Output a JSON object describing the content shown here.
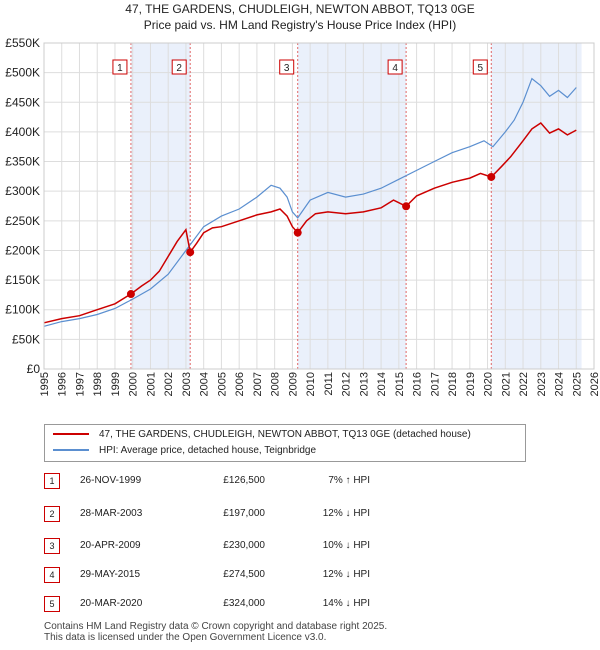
{
  "header": {
    "title_line1": "47, THE GARDENS, CHUDLEIGH, NEWTON ABBOT, TQ13 0GE",
    "title_line2": "Price paid vs. HM Land Registry's House Price Index (HPI)"
  },
  "colors": {
    "price_line": "#cc0000",
    "hpi_line": "#5b8fd0",
    "shade": "#eaf0fb",
    "grid": "#dddddd",
    "marker_box_border": "#cc0000"
  },
  "chart_data": {
    "type": "line",
    "title": "Price paid vs. HM Land Registry's House Price Index (HPI)",
    "xlabel": "",
    "ylabel": "",
    "xlim": [
      1995,
      2026
    ],
    "ylim": [
      0,
      550000
    ],
    "grid": true,
    "x_ticks": [
      "1995",
      "1996",
      "1997",
      "1998",
      "1999",
      "2000",
      "2001",
      "2002",
      "2003",
      "2004",
      "2005",
      "2006",
      "2007",
      "2008",
      "2009",
      "2010",
      "2011",
      "2012",
      "2013",
      "2014",
      "2015",
      "2016",
      "2017",
      "2018",
      "2019",
      "2020",
      "2021",
      "2022",
      "2023",
      "2024",
      "2025",
      "2026"
    ],
    "y_ticks": [
      {
        "value": 0,
        "label": "£0"
      },
      {
        "value": 50000,
        "label": "£50K"
      },
      {
        "value": 100000,
        "label": "£100K"
      },
      {
        "value": 150000,
        "label": "£150K"
      },
      {
        "value": 200000,
        "label": "£200K"
      },
      {
        "value": 250000,
        "label": "£250K"
      },
      {
        "value": 300000,
        "label": "£300K"
      },
      {
        "value": 350000,
        "label": "£350K"
      },
      {
        "value": 400000,
        "label": "£400K"
      },
      {
        "value": 450000,
        "label": "£450K"
      },
      {
        "value": 500000,
        "label": "£500K"
      },
      {
        "value": 550000,
        "label": "£550K"
      }
    ],
    "series": [
      {
        "name": "47, THE GARDENS, CHUDLEIGH, NEWTON ABBOT, TQ13 0GE (detached house)",
        "color": "#cc0000",
        "x": [
          1995.0,
          1996.0,
          1997.0,
          1998.0,
          1999.0,
          1999.9,
          2000.5,
          2001.0,
          2001.5,
          2002.0,
          2002.5,
          2003.0,
          2003.24,
          2003.6,
          2004.0,
          2004.5,
          2005.0,
          2006.0,
          2007.0,
          2007.8,
          2008.3,
          2008.7,
          2009.0,
          2009.3,
          2009.8,
          2010.3,
          2011.0,
          2012.0,
          2013.0,
          2014.0,
          2014.7,
          2015.41,
          2016.0,
          2017.0,
          2018.0,
          2019.0,
          2019.6,
          2020.21,
          2020.8,
          2021.3,
          2022.0,
          2022.5,
          2023.0,
          2023.5,
          2024.0,
          2024.5,
          2025.0
        ],
        "values": [
          78000,
          85000,
          90000,
          100000,
          110000,
          126500,
          140000,
          150000,
          165000,
          190000,
          215000,
          235000,
          197000,
          212000,
          230000,
          238000,
          240000,
          250000,
          260000,
          265000,
          270000,
          258000,
          240000,
          230000,
          250000,
          262000,
          265000,
          262000,
          265000,
          272000,
          285000,
          274500,
          292000,
          305000,
          315000,
          322000,
          330000,
          324000,
          342000,
          358000,
          385000,
          405000,
          415000,
          398000,
          405000,
          395000,
          403000
        ]
      },
      {
        "name": "HPI: Average price, detached house, Teignbridge",
        "color": "#5b8fd0",
        "x": [
          1995.0,
          1996.0,
          1997.0,
          1998.0,
          1999.0,
          2000.0,
          2001.0,
          2002.0,
          2003.0,
          2004.0,
          2005.0,
          2006.0,
          2007.0,
          2007.8,
          2008.3,
          2008.7,
          2009.0,
          2009.3,
          2010.0,
          2011.0,
          2012.0,
          2013.0,
          2014.0,
          2015.0,
          2016.0,
          2017.0,
          2018.0,
          2019.0,
          2019.8,
          2020.3,
          2021.0,
          2021.5,
          2022.0,
          2022.5,
          2023.0,
          2023.5,
          2024.0,
          2024.5,
          2025.0
        ],
        "values": [
          72000,
          80000,
          85000,
          92000,
          102000,
          118000,
          135000,
          160000,
          200000,
          240000,
          258000,
          270000,
          290000,
          310000,
          305000,
          290000,
          265000,
          255000,
          285000,
          298000,
          290000,
          295000,
          305000,
          320000,
          335000,
          350000,
          365000,
          375000,
          385000,
          375000,
          400000,
          420000,
          450000,
          490000,
          478000,
          460000,
          470000,
          458000,
          475000
        ]
      }
    ],
    "sales": [
      {
        "n": "1",
        "x": 1999.9,
        "value": 126500
      },
      {
        "n": "2",
        "x": 2003.24,
        "value": 197000
      },
      {
        "n": "3",
        "x": 2009.3,
        "value": 230000
      },
      {
        "n": "4",
        "x": 2015.41,
        "value": 274500
      },
      {
        "n": "5",
        "x": 2020.21,
        "value": 324000
      }
    ],
    "shaded_ranges": [
      [
        1999.9,
        2003.24
      ],
      [
        2009.3,
        2015.41
      ],
      [
        2020.21,
        2025.3
      ]
    ]
  },
  "legend": {
    "price_label": "47, THE GARDENS, CHUDLEIGH, NEWTON ABBOT, TQ13 0GE (detached house)",
    "hpi_label": "HPI: Average price, detached house, Teignbridge"
  },
  "sales_table": [
    {
      "n": "1",
      "date": "26-NOV-1999",
      "price": "£126,500",
      "hpi": "7% ↑ HPI"
    },
    {
      "n": "2",
      "date": "28-MAR-2003",
      "price": "£197,000",
      "hpi": "12% ↓ HPI"
    },
    {
      "n": "3",
      "date": "20-APR-2009",
      "price": "£230,000",
      "hpi": "10% ↓ HPI"
    },
    {
      "n": "4",
      "date": "29-MAY-2015",
      "price": "£274,500",
      "hpi": "12% ↓ HPI"
    },
    {
      "n": "5",
      "date": "20-MAR-2020",
      "price": "£324,000",
      "hpi": "14% ↓ HPI"
    }
  ],
  "footer": {
    "line1": "Contains HM Land Registry data © Crown copyright and database right 2025.",
    "line2": "This data is licensed under the Open Government Licence v3.0."
  }
}
